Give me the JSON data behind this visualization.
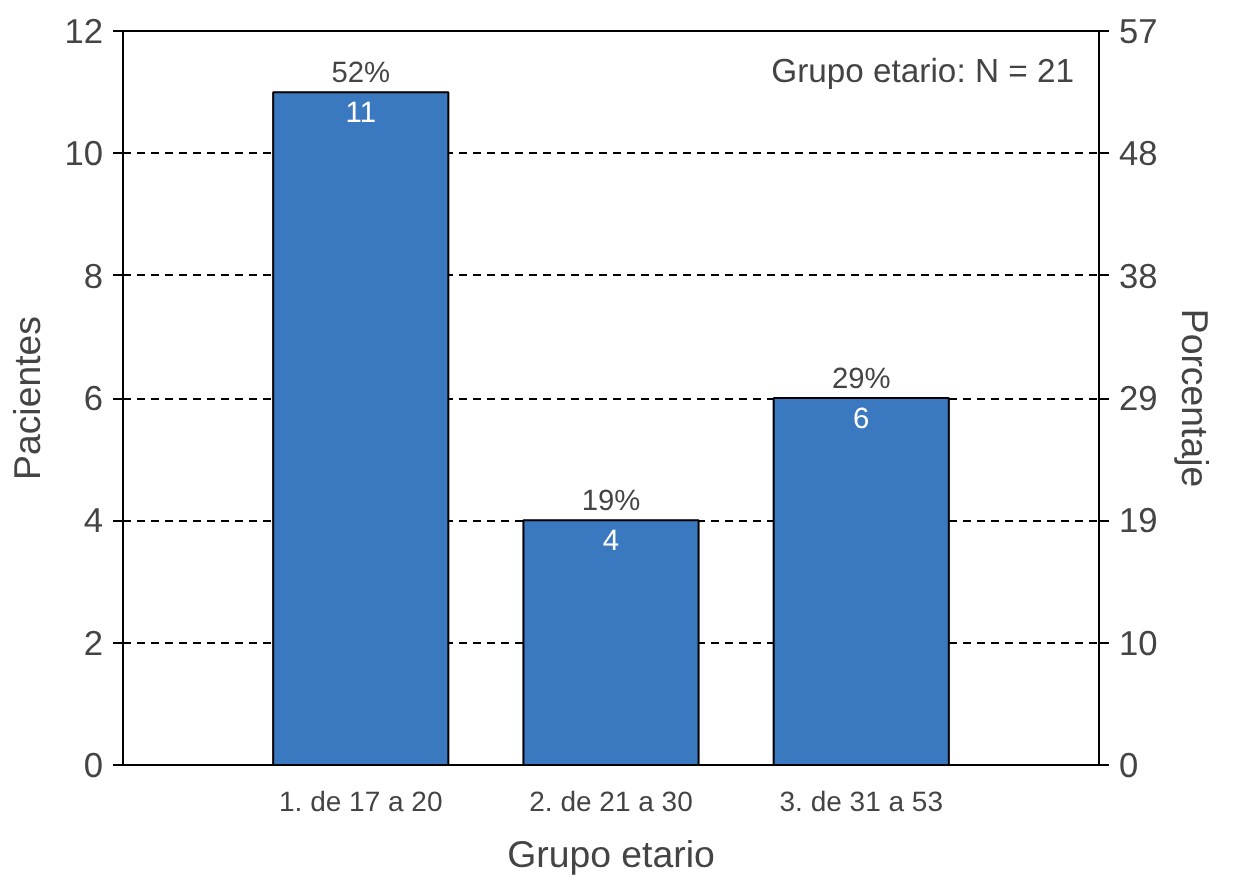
{
  "chart_data": {
    "type": "bar",
    "xlabel": "Grupo etario",
    "ylabel": "Pacientes",
    "y2label": "Porcentaje",
    "categories": [
      "1. de 17 a 20",
      "2. de 21 a 30",
      "3. de 31 a 53"
    ],
    "values": [
      11,
      4,
      6
    ],
    "color": "#3a78c0",
    "value_labels": [
      "11",
      "4",
      "6"
    ],
    "ylim": [
      0,
      12
    ],
    "yticks": [
      0,
      2,
      4,
      6,
      8,
      10,
      12
    ],
    "y2lim": [
      0,
      57.14
    ],
    "y2ticks": [
      {
        "value": 0,
        "label": "0"
      },
      {
        "value": 9.52,
        "label": "10"
      },
      {
        "value": 19.05,
        "label": "19"
      },
      {
        "value": 28.57,
        "label": "29"
      },
      {
        "value": 38.1,
        "label": "38"
      },
      {
        "value": 47.62,
        "label": "48"
      },
      {
        "value": 57.14,
        "label": "57"
      }
    ],
    "grid": "y",
    "line_style": "dashed",
    "annotations": [
      "Grupo etario: N = 21",
      {
        "text": "52%",
        "x": "1. de 17 a 20",
        "y": 11
      },
      {
        "text": "19%",
        "x": "2. de 21 a 30",
        "y": 4
      },
      {
        "text": "29%",
        "x": "3. de 31 a 53",
        "y": 6
      }
    ]
  }
}
